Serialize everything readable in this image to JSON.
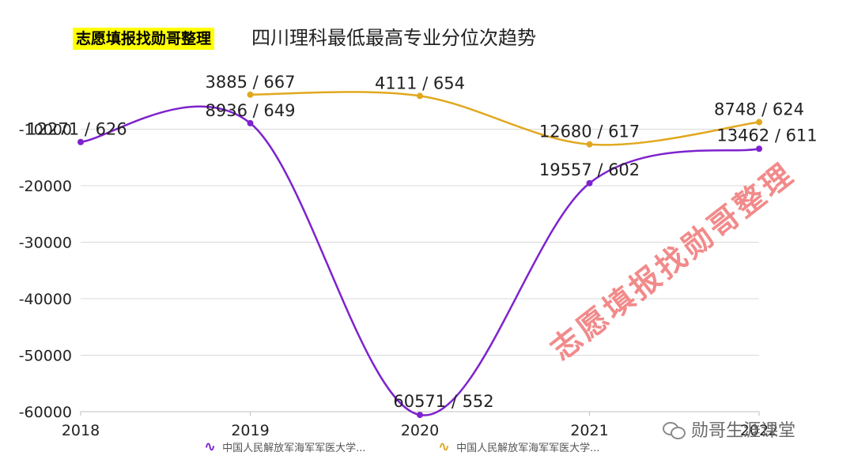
{
  "header": {
    "badge_text": "志愿填报找勋哥整理",
    "title_text": "四川理科最低最高专业分位次趋势"
  },
  "watermark_text": "志愿填报找勋哥整理",
  "brand_text": "勋哥生涯课堂",
  "legend": [
    {
      "label": "中国人民解放军海军军医大学...",
      "color": "#7e22ce",
      "icon": "wave-line-icon"
    },
    {
      "label": "中国人民解放军海军军医大学...",
      "color": "#e1a81e",
      "icon": "wave-line-icon"
    }
  ],
  "chart_data": {
    "type": "line",
    "x": [
      "2018",
      "2019",
      "2020",
      "2021",
      "2022"
    ],
    "ylim": [
      -60000,
      0
    ],
    "yticks": [
      -10000,
      -20000,
      -30000,
      -40000,
      -50000,
      -60000
    ],
    "ytick_labels": [
      "-10000",
      "-20000",
      "-30000",
      "-40000",
      "-50000",
      "-60000"
    ],
    "grid": true,
    "series": [
      {
        "color": "#7e22ce",
        "values": [
          -12271,
          -8936,
          -60571,
          -19557,
          -13462
        ],
        "labels": [
          "12271 / 626",
          "8936 / 649",
          "60571 / 552",
          "19557 / 602",
          "13462 / 611"
        ]
      },
      {
        "color": "#e1a81e",
        "points": [
          {
            "x": "2019",
            "y": -3885,
            "label": "3885 / 667"
          },
          {
            "x": "2020",
            "y": -4111,
            "label": "4111 / 654"
          },
          {
            "x": "2021",
            "y": -12680,
            "label": "12680 / 617"
          },
          {
            "x": "2022",
            "y": -8748,
            "label": "8748 / 624"
          }
        ]
      }
    ]
  }
}
